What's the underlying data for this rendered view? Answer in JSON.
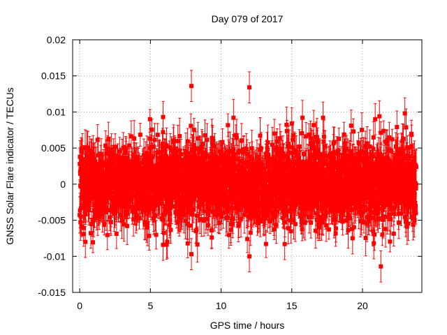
{
  "chart_data": {
    "type": "scatter",
    "title": "Day 079 of 2017",
    "xlabel": "GPS time / hours",
    "ylabel": "GNSS Solar Flare indicator / TECUs",
    "xlim": [
      -0.5,
      24.2
    ],
    "ylim": [
      -0.015,
      0.02
    ],
    "grid": true,
    "xticks": [
      0,
      5,
      10,
      15,
      20
    ],
    "xtick_labels": [
      "0",
      "5",
      "10",
      "15",
      "20"
    ],
    "yticks": [
      -0.015,
      -0.01,
      -0.005,
      0,
      0.005,
      0.01,
      0.015,
      0.02
    ],
    "ytick_labels": [
      "-0.015",
      "-0.01",
      "-0.005",
      "0",
      "0.005",
      "0.01",
      "0.015",
      "0.02"
    ],
    "series": [
      {
        "name": "GNSS Solar Flare indicator",
        "color": "#ff0000",
        "marker": "square",
        "error_bars": true,
        "x_start": 0.0,
        "x_end": 23.8,
        "n_points": 2880,
        "noise_sigma": 0.0028,
        "typical_error": 0.0018,
        "notable_points": [
          {
            "x": 7.9,
            "y": 0.0136
          },
          {
            "x": 12.0,
            "y": 0.0134
          },
          {
            "x": 23.0,
            "y": 0.0098
          },
          {
            "x": 5.9,
            "y": 0.0093
          },
          {
            "x": 21.2,
            "y": 0.0094
          },
          {
            "x": 20.9,
            "y": 0.009
          },
          {
            "x": 15.0,
            "y": 0.0084
          },
          {
            "x": 19.2,
            "y": 0.0081
          },
          {
            "x": 21.3,
            "y": -0.0114
          },
          {
            "x": 7.9,
            "y": -0.0097
          },
          {
            "x": 12.0,
            "y": -0.01
          },
          {
            "x": 20.8,
            "y": -0.0082
          },
          {
            "x": 5.9,
            "y": -0.0084
          },
          {
            "x": 14.5,
            "y": -0.0083
          },
          {
            "x": 0.4,
            "y": -0.008
          },
          {
            "x": 19.3,
            "y": -0.0075
          }
        ]
      }
    ]
  }
}
